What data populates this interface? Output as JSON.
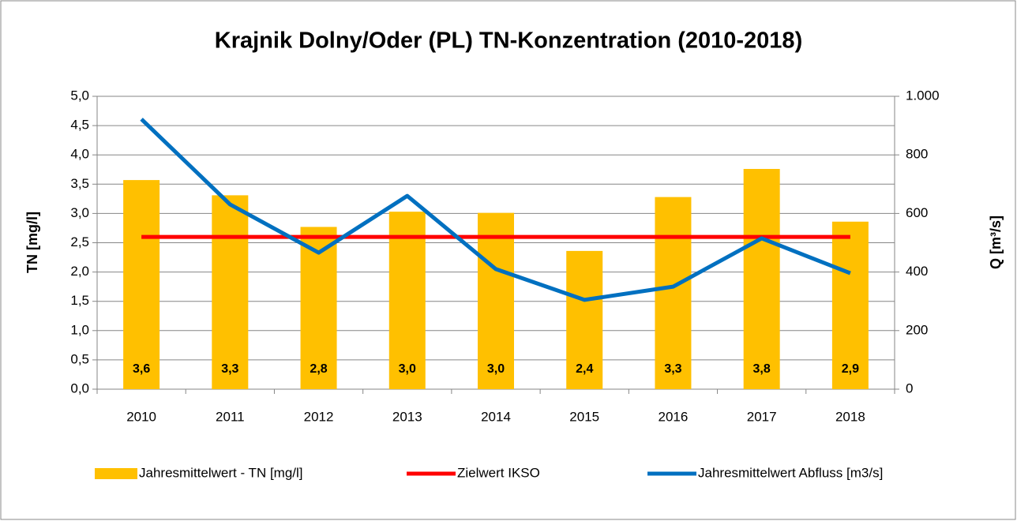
{
  "chart_data": {
    "type": "bar",
    "title": "Krajnik Dolny/Oder (PL) TN-Konzentration (2010-2018)",
    "y_label": "TN [mg/l]",
    "y2_label": "Q [m³/s]",
    "categories": [
      "2010",
      "2011",
      "2012",
      "2013",
      "2014",
      "2015",
      "2016",
      "2017",
      "2018"
    ],
    "series": [
      {
        "name": "Jahresmittelwert - TN [mg/l]",
        "type": "bar",
        "color": "#ffc000",
        "values": [
          3.57,
          3.31,
          2.77,
          3.03,
          3.01,
          2.36,
          3.28,
          3.76,
          2.86
        ],
        "value_labels": [
          "3,6",
          "3,3",
          "2,8",
          "3,0",
          "3,0",
          "2,4",
          "3,3",
          "3,8",
          "2,9"
        ]
      },
      {
        "name": "Zielwert IKSO",
        "type": "line",
        "color": "#ff0000",
        "values": [
          2.6,
          2.6,
          2.6,
          2.6,
          2.6,
          2.6,
          2.6,
          2.6,
          2.6
        ]
      },
      {
        "name": "Jahresmittelwert Abfluss [m3/s]",
        "type": "line",
        "axis": "y2",
        "color": "#0070c0",
        "values": [
          922,
          631,
          466,
          660,
          410,
          305,
          350,
          515,
          396
        ]
      }
    ],
    "ylim": [
      0,
      5
    ],
    "yticks": [
      {
        "value": 0,
        "label": "0,0"
      },
      {
        "value": 0.5,
        "label": "0,5"
      },
      {
        "value": 1,
        "label": "1,0"
      },
      {
        "value": 1.5,
        "label": "1,5"
      },
      {
        "value": 2,
        "label": "2,0"
      },
      {
        "value": 2.5,
        "label": "2,5"
      },
      {
        "value": 3,
        "label": "3,0"
      },
      {
        "value": 3.5,
        "label": "3,5"
      },
      {
        "value": 4,
        "label": "4,0"
      },
      {
        "value": 4.5,
        "label": "4,5"
      },
      {
        "value": 5,
        "label": "5,0"
      }
    ],
    "y2lim": [
      0,
      1000
    ],
    "y2ticks": [
      0,
      200,
      400,
      600,
      800,
      {
        "value": 1000,
        "label": "1.000"
      }
    ],
    "grid": true,
    "legend": "bottom"
  }
}
